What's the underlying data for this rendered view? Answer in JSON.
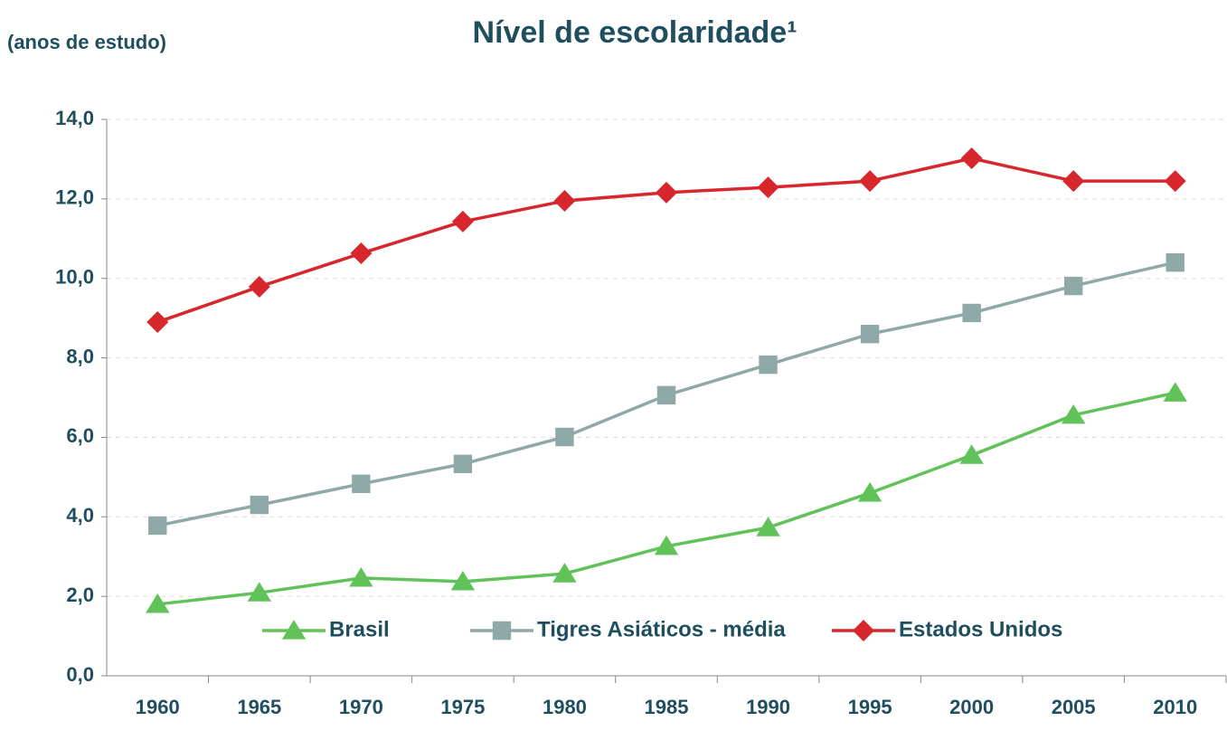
{
  "chart_data": {
    "type": "line",
    "title": "Nível de escolaridade¹",
    "y_axis_label": "(anos de estudo)",
    "categories": [
      "1960",
      "1965",
      "1970",
      "1975",
      "1980",
      "1985",
      "1990",
      "1995",
      "2000",
      "2005",
      "2010"
    ],
    "series": [
      {
        "name": "Brasil",
        "color": "#62c25a",
        "marker": "triangle",
        "values": [
          1.8,
          2.09,
          2.46,
          2.37,
          2.57,
          3.26,
          3.73,
          4.6,
          5.55,
          6.56,
          7.12
        ]
      },
      {
        "name": "Tigres Asiáticos - média",
        "color": "#8ea9a8",
        "marker": "square",
        "values": [
          3.78,
          4.3,
          4.83,
          5.33,
          6.01,
          7.06,
          7.83,
          8.6,
          9.13,
          9.81,
          10.4
        ]
      },
      {
        "name": "Estados Unidos",
        "color": "#d7262c",
        "marker": "diamond",
        "values": [
          8.9,
          9.79,
          10.63,
          11.43,
          11.95,
          12.16,
          12.29,
          12.45,
          13.02,
          12.45,
          12.45
        ]
      }
    ],
    "ylim": [
      0,
      14
    ],
    "yticks": [
      {
        "value": 0,
        "label": "0,0"
      },
      {
        "value": 2,
        "label": "2,0"
      },
      {
        "value": 4,
        "label": "4,0"
      },
      {
        "value": 6,
        "label": "6,0"
      },
      {
        "value": 8,
        "label": "8,0"
      },
      {
        "value": 10,
        "label": "10,0"
      },
      {
        "value": 12,
        "label": "12,0"
      },
      {
        "value": 14,
        "label": "14,0"
      }
    ],
    "grid": true,
    "legend": "bottom"
  }
}
